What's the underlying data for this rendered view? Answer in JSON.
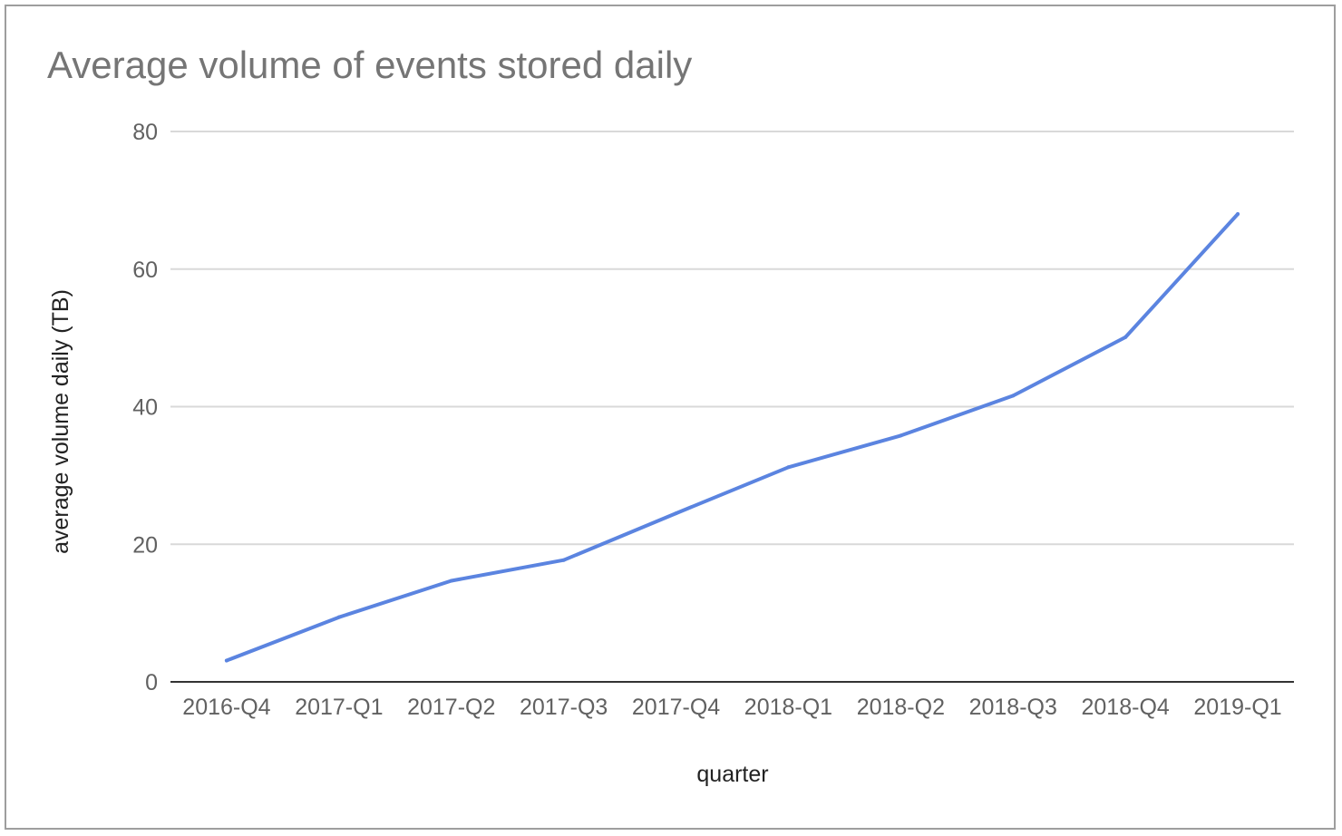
{
  "chart_data": {
    "type": "line",
    "title": "Average volume of events stored daily",
    "xlabel": "quarter",
    "ylabel": "average volume daily (TB)",
    "categories": [
      "2016-Q4",
      "2017-Q1",
      "2017-Q2",
      "2017-Q3",
      "2017-Q4",
      "2018-Q1",
      "2018-Q2",
      "2018-Q3",
      "2018-Q4",
      "2019-Q1"
    ],
    "series": [
      {
        "values": [
          3.1,
          9.4,
          14.7,
          17.7,
          24.5,
          31.2,
          35.8,
          41.6,
          50.1,
          68.0
        ],
        "color": "#5b84e0"
      }
    ],
    "ylim": [
      0,
      80
    ],
    "yticks": [
      0,
      20,
      40,
      60,
      80
    ],
    "grid": true,
    "legend": "none",
    "colors": {
      "gridline": "#d9d9d9",
      "baseline": "#333333",
      "tick_text": "#616161",
      "title_text": "#757575",
      "frame": "#9e9e9e"
    }
  }
}
